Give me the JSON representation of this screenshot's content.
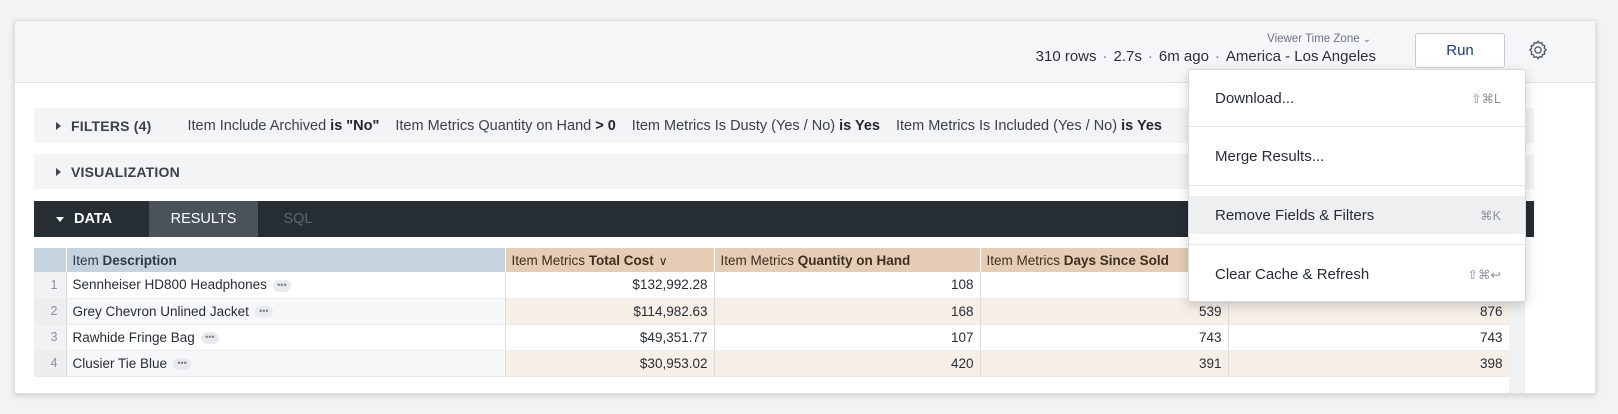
{
  "header": {
    "rows": "310 rows",
    "runtime": "2.7s",
    "age": "6m ago",
    "timezone": "America - Los Angeles",
    "timezone_label": "Viewer Time Zone",
    "timezone_chevron": "⌄",
    "separator": "·",
    "run_label": "Run",
    "gear_icon": "gear-icon"
  },
  "filters": {
    "title": "FILTERS (4)",
    "items": [
      {
        "field": "Item Include Archived",
        "op": "is \"No\""
      },
      {
        "field": "Item Metrics Quantity on Hand",
        "op": "> 0"
      },
      {
        "field": "Item Metrics Is Dusty (Yes / No)",
        "op": "is Yes"
      },
      {
        "field": "Item Metrics Is Included (Yes / No)",
        "op": "is Yes"
      }
    ]
  },
  "visualization": {
    "title": "VISUALIZATION"
  },
  "data_tabs": {
    "data": "DATA",
    "results": "RESULTS",
    "sql": "SQL"
  },
  "table": {
    "columns": [
      {
        "prefix": "Item",
        "name": "Description"
      },
      {
        "prefix": "Item Metrics",
        "name": "Total Cost"
      },
      {
        "prefix": "Item Metrics",
        "name": "Quantity on Hand"
      },
      {
        "prefix": "Item Metrics",
        "name": "Days Since Sold"
      },
      {
        "prefix": "",
        "name": ""
      }
    ],
    "sort_icon": "∨",
    "row_menu_icon": "•••",
    "rows": [
      {
        "n": "1",
        "desc": "Sennheiser HD800 Headphones",
        "cost": "$132,992.28",
        "qty": "108",
        "days": "",
        "extra": ""
      },
      {
        "n": "2",
        "desc": "Grey Chevron Unlined Jacket",
        "cost": "$114,982.63",
        "qty": "168",
        "days": "539",
        "extra": "876"
      },
      {
        "n": "3",
        "desc": "Rawhide Fringe Bag",
        "cost": "$49,351.77",
        "qty": "107",
        "days": "743",
        "extra": "743"
      },
      {
        "n": "4",
        "desc": "Clusier Tie Blue",
        "cost": "$30,953.02",
        "qty": "420",
        "days": "391",
        "extra": "398"
      }
    ]
  },
  "menu": {
    "items": [
      {
        "label": "Download...",
        "shortcut": "⇧⌘L"
      },
      {
        "label": "Merge Results...",
        "shortcut": ""
      },
      {
        "label": "Remove Fields & Filters",
        "shortcut": "⌘K"
      },
      {
        "label": "Clear Cache & Refresh",
        "shortcut": "⇧⌘↩"
      }
    ]
  }
}
